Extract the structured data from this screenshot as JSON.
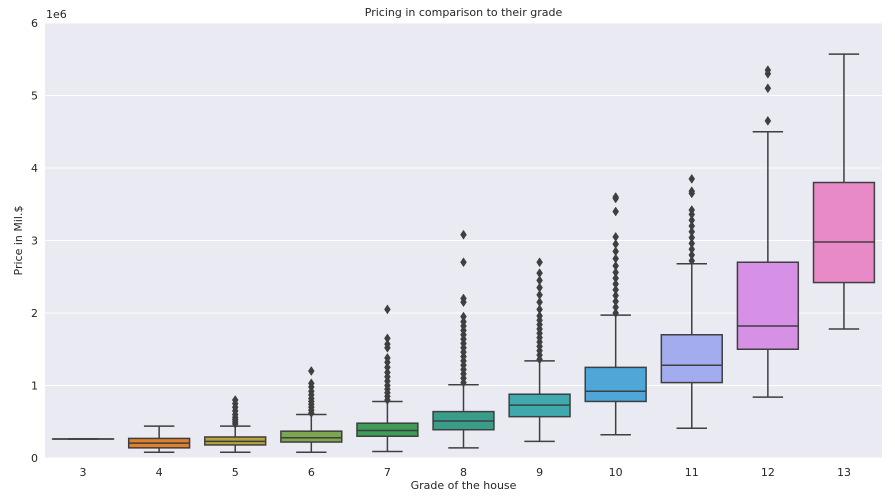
{
  "chart_data": {
    "type": "box",
    "title": "Pricing in comparison to their grade",
    "xlabel": "Grade of the house",
    "ylabel": "Price in Mil.$",
    "y_offset_label": "1e6",
    "ylim": [
      0,
      6000000
    ],
    "yticks": [
      0,
      1,
      2,
      3,
      4,
      5,
      6
    ],
    "grid": true,
    "categories": [
      "3",
      "4",
      "5",
      "6",
      "7",
      "8",
      "9",
      "10",
      "11",
      "12",
      "13"
    ],
    "boxes": [
      {
        "category": "3",
        "color": "#3274a1",
        "whislo": 262000,
        "q1": 262000,
        "med": 262000,
        "q3": 262000,
        "whishi": 262000,
        "fliers": []
      },
      {
        "category": "4",
        "color": "#e1812c",
        "whislo": 80000,
        "q1": 140000,
        "med": 205000,
        "q3": 270000,
        "whishi": 440000,
        "fliers": []
      },
      {
        "category": "5",
        "color": "#b5a33d",
        "whislo": 80000,
        "q1": 180000,
        "med": 230000,
        "q3": 290000,
        "whishi": 440000,
        "fliers": [
          470000,
          500000,
          530000,
          560000,
          600000,
          650000,
          700000,
          750000,
          800000
        ]
      },
      {
        "category": "6",
        "color": "#7ca650",
        "whislo": 80000,
        "q1": 220000,
        "med": 280000,
        "q3": 370000,
        "whishi": 600000,
        "fliers": [
          620000,
          660000,
          700000,
          740000,
          780000,
          820000,
          870000,
          920000,
          980000,
          1030000,
          1200000
        ]
      },
      {
        "category": "7",
        "color": "#3d9c57",
        "whislo": 90000,
        "q1": 300000,
        "med": 380000,
        "q3": 480000,
        "whishi": 780000,
        "fliers": [
          800000,
          850000,
          900000,
          950000,
          1000000,
          1060000,
          1120000,
          1180000,
          1250000,
          1320000,
          1380000,
          1520000,
          1570000,
          1650000,
          2050000
        ]
      },
      {
        "category": "8",
        "color": "#3a9d8a",
        "whislo": 140000,
        "q1": 390000,
        "med": 510000,
        "q3": 640000,
        "whishi": 1010000,
        "fliers": [
          1040000,
          1100000,
          1160000,
          1220000,
          1280000,
          1340000,
          1400000,
          1460000,
          1520000,
          1580000,
          1640000,
          1700000,
          1760000,
          1820000,
          1880000,
          1950000,
          2150000,
          2200000,
          2700000,
          3080000
        ]
      },
      {
        "category": "9",
        "color": "#40a9ae",
        "whislo": 230000,
        "q1": 570000,
        "med": 730000,
        "q3": 880000,
        "whishi": 1340000,
        "fliers": [
          1360000,
          1420000,
          1480000,
          1540000,
          1600000,
          1660000,
          1720000,
          1780000,
          1840000,
          1900000,
          1960000,
          2050000,
          2150000,
          2250000,
          2350000,
          2450000,
          2550000,
          2700000
        ]
      },
      {
        "category": "10",
        "color": "#4fa6d8",
        "whislo": 320000,
        "q1": 780000,
        "med": 920000,
        "q3": 1250000,
        "whishi": 1970000,
        "fliers": [
          2000000,
          2080000,
          2160000,
          2240000,
          2320000,
          2400000,
          2480000,
          2560000,
          2650000,
          2750000,
          2850000,
          2950000,
          3050000,
          3400000,
          3580000,
          3600000
        ]
      },
      {
        "category": "11",
        "color": "#a3acee",
        "whislo": 410000,
        "q1": 1040000,
        "med": 1280000,
        "q3": 1700000,
        "whishi": 2680000,
        "fliers": [
          2720000,
          2800000,
          2880000,
          2960000,
          3040000,
          3120000,
          3200000,
          3280000,
          3360000,
          3420000,
          3650000,
          3680000,
          3850000
        ]
      },
      {
        "category": "12",
        "color": "#d691e6",
        "whislo": 840000,
        "q1": 1500000,
        "med": 1820000,
        "q3": 2700000,
        "whishi": 4500000,
        "fliers": [
          4650000,
          5100000,
          5300000,
          5350000
        ]
      },
      {
        "category": "13",
        "color": "#e98ac8",
        "whislo": 1780000,
        "q1": 2420000,
        "med": 2980000,
        "q3": 3800000,
        "whishi": 5570000,
        "fliers": []
      }
    ]
  }
}
